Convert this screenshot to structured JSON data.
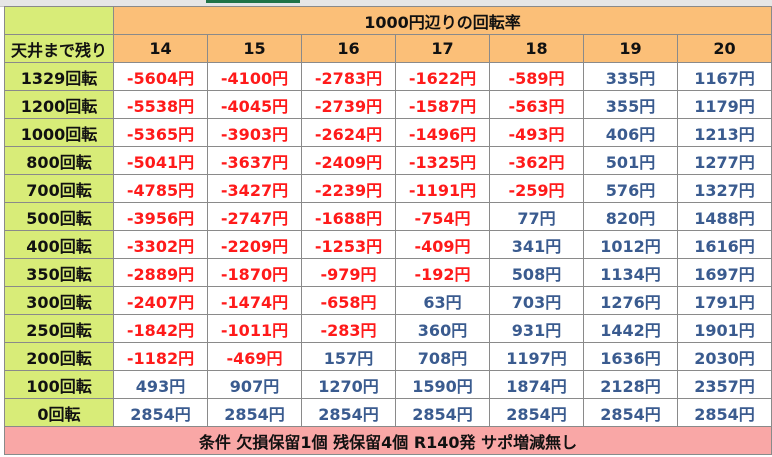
{
  "header": {
    "title": "1000円辺りの回転率"
  },
  "corner_label": "天井まで残り",
  "columns": [
    "14",
    "15",
    "16",
    "17",
    "18",
    "19",
    "20"
  ],
  "rows": [
    {
      "label": "1329回転",
      "values": [
        "-5604円",
        "-4100円",
        "-2783円",
        "-1622円",
        "-589円",
        "335円",
        "1167円"
      ]
    },
    {
      "label": "1200回転",
      "values": [
        "-5538円",
        "-4045円",
        "-2739円",
        "-1587円",
        "-563円",
        "355円",
        "1179円"
      ]
    },
    {
      "label": "1000回転",
      "values": [
        "-5365円",
        "-3903円",
        "-2624円",
        "-1496円",
        "-493円",
        "406円",
        "1213円"
      ]
    },
    {
      "label": "800回転",
      "values": [
        "-5041円",
        "-3637円",
        "-2409円",
        "-1325円",
        "-362円",
        "501円",
        "1277円"
      ]
    },
    {
      "label": "700回転",
      "values": [
        "-4785円",
        "-3427円",
        "-2239円",
        "-1191円",
        "-259円",
        "576円",
        "1327円"
      ]
    },
    {
      "label": "500回転",
      "values": [
        "-3956円",
        "-2747円",
        "-1688円",
        "-754円",
        "77円",
        "820円",
        "1488円"
      ]
    },
    {
      "label": "400回転",
      "values": [
        "-3302円",
        "-2209円",
        "-1253円",
        "-409円",
        "341円",
        "1012円",
        "1616円"
      ]
    },
    {
      "label": "350回転",
      "values": [
        "-2889円",
        "-1870円",
        "-979円",
        "-192円",
        "508円",
        "1134円",
        "1697円"
      ]
    },
    {
      "label": "300回転",
      "values": [
        "-2407円",
        "-1474円",
        "-658円",
        "63円",
        "703円",
        "1276円",
        "1791円"
      ]
    },
    {
      "label": "250回転",
      "values": [
        "-1842円",
        "-1011円",
        "-283円",
        "360円",
        "931円",
        "1442円",
        "1901円"
      ]
    },
    {
      "label": "200回転",
      "values": [
        "-1182円",
        "-469円",
        "157円",
        "708円",
        "1197円",
        "1636円",
        "2030円"
      ]
    },
    {
      "label": "100回転",
      "values": [
        "493円",
        "907円",
        "1270円",
        "1590円",
        "1874円",
        "2128円",
        "2357円"
      ]
    },
    {
      "label": "0回転",
      "values": [
        "2854円",
        "2854円",
        "2854円",
        "2854円",
        "2854円",
        "2854円",
        "2854円"
      ]
    }
  ],
  "footer": {
    "text": "条件 欠損保留1個 残保留4個 R140発 サポ増減無し"
  },
  "colors": {
    "negative": "#ff1a1a",
    "positive": "#3a5b8f",
    "header_fill": "#fbbf78",
    "row_label_fill": "#d8ec78",
    "footer_fill": "#f9a7a6"
  }
}
